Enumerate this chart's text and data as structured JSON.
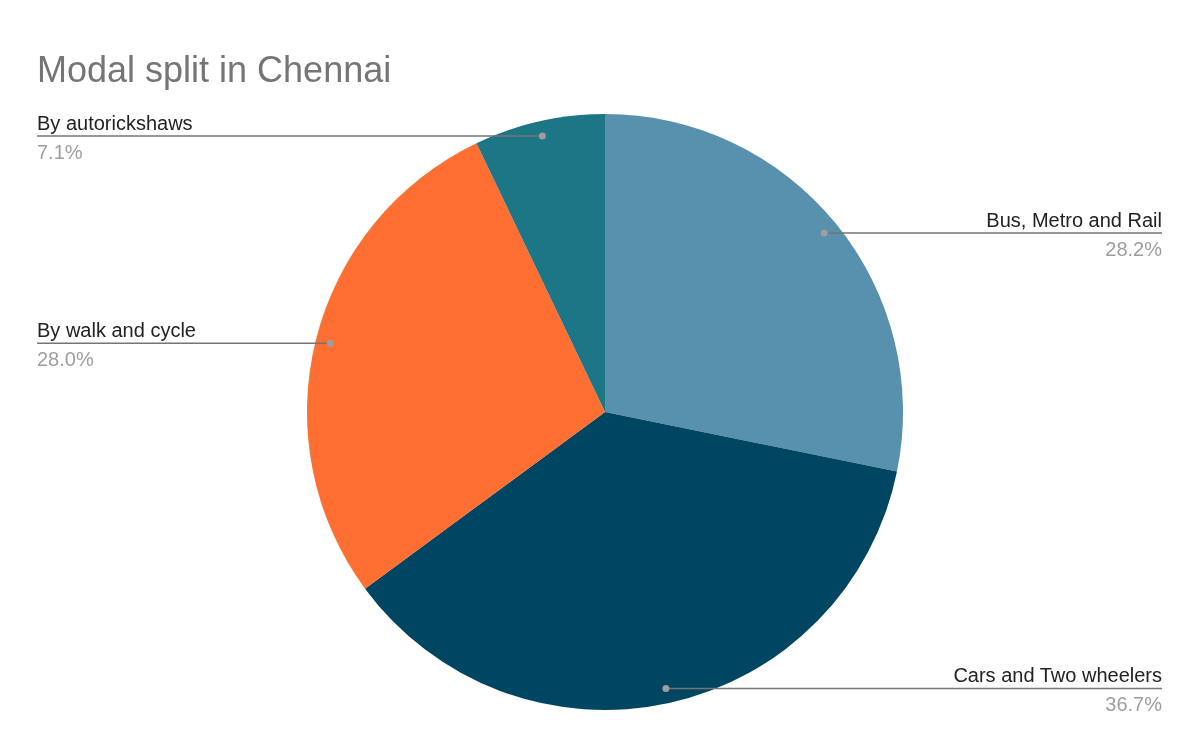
{
  "chart_data": {
    "type": "pie",
    "title": "Modal split in Chennai",
    "categories": [
      "Bus, Metro and Rail",
      "Cars and Two wheelers",
      "By walk and cycle",
      "By autorickshaws"
    ],
    "values": [
      28.2,
      36.7,
      28.0,
      7.1
    ],
    "colors": [
      "#5891ad",
      "#004561",
      "#ff6f31",
      "#1c7685"
    ],
    "value_labels": [
      "28.2%",
      "36.7%",
      "28.0%",
      "7.1%"
    ],
    "legend": false
  }
}
